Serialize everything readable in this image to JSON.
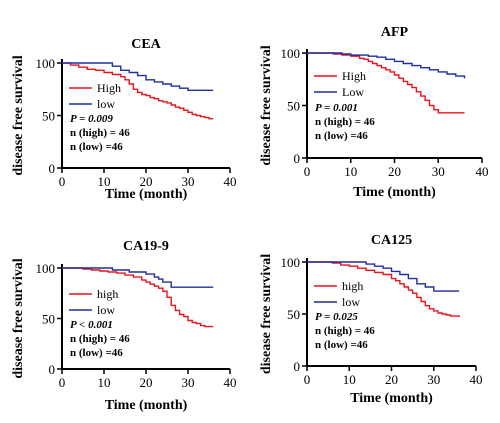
{
  "figure": {
    "colors": {
      "high": "#e8141c",
      "low": "#1f2f9c",
      "axis": "#000000"
    }
  },
  "chart_data": [
    {
      "type": "line",
      "title": "CEA",
      "xlabel": "Time (month)",
      "ylabel": "disease free survival",
      "xlim": [
        0,
        40
      ],
      "ylim": [
        0,
        100
      ],
      "xticks": [
        "0",
        "10",
        "20",
        "30",
        "40"
      ],
      "yticks": [
        "0",
        "50",
        "100"
      ],
      "legend_position": "left",
      "series": [
        {
          "name": "High",
          "color": "#e8141c",
          "x": [
            0,
            1,
            2,
            4,
            6,
            8,
            9,
            10,
            12,
            14,
            15,
            16,
            17,
            18,
            19,
            20,
            21,
            22,
            23,
            24,
            25,
            26,
            27,
            28,
            29,
            30,
            31,
            32,
            33,
            34,
            35,
            36
          ],
          "y": [
            100,
            100,
            98,
            96,
            94,
            93,
            93,
            91,
            89,
            87,
            84,
            80,
            75,
            72,
            70,
            69,
            67,
            66,
            64,
            63,
            62,
            60,
            58,
            57,
            55,
            53,
            51,
            50,
            49,
            48,
            47,
            47
          ]
        },
        {
          "name": "low",
          "color": "#1f2f9c",
          "x": [
            0,
            10,
            12,
            14,
            16,
            18,
            20,
            22,
            24,
            26,
            28,
            30,
            36
          ],
          "y": [
            100,
            100,
            97,
            93,
            91,
            88,
            84,
            82,
            80,
            78,
            76,
            74,
            74
          ]
        }
      ],
      "annotations": [
        "P = 0.009",
        "n (high) = 46",
        "n (low) =46"
      ]
    },
    {
      "type": "line",
      "title": "AFP",
      "xlabel": "Time (month)",
      "ylabel": "disease free survival",
      "xlim": [
        0,
        40
      ],
      "ylim": [
        0,
        100
      ],
      "xticks": [
        "0",
        "10",
        "20",
        "30",
        "40"
      ],
      "yticks": [
        "0",
        "50",
        "100"
      ],
      "legend_position": "left",
      "series": [
        {
          "name": "High",
          "color": "#e8141c",
          "x": [
            0,
            4,
            6,
            8,
            10,
            12,
            13,
            14,
            15,
            16,
            17,
            18,
            19,
            20,
            21,
            22,
            23,
            24,
            25,
            26,
            27,
            28,
            29,
            30,
            32,
            34,
            36
          ],
          "y": [
            100,
            100,
            99,
            98,
            97,
            95,
            94,
            92,
            90,
            88,
            86,
            84,
            82,
            79,
            76,
            73,
            70,
            67,
            63,
            59,
            55,
            50,
            46,
            43,
            43,
            43,
            43
          ]
        },
        {
          "name": "Low",
          "color": "#1f2f9c",
          "x": [
            0,
            6,
            8,
            10,
            12,
            14,
            16,
            18,
            20,
            22,
            24,
            26,
            28,
            30,
            32,
            34,
            36
          ],
          "y": [
            100,
            100,
            99,
            98,
            98,
            97,
            96,
            94,
            92,
            90,
            88,
            86,
            84,
            82,
            80,
            78,
            76
          ]
        }
      ],
      "annotations": [
        "P = 0.001",
        "n (high) = 46",
        "n (low) =46"
      ]
    },
    {
      "type": "line",
      "title": "CA19-9",
      "xlabel": "Time (month)",
      "ylabel": "disease free survival",
      "xlim": [
        0,
        40
      ],
      "ylim": [
        0,
        100
      ],
      "xticks": [
        "0",
        "10",
        "20",
        "30",
        "40"
      ],
      "yticks": [
        "0",
        "50",
        "100"
      ],
      "legend_position": "left",
      "series": [
        {
          "name": "high",
          "color": "#e8141c",
          "x": [
            0,
            3,
            5,
            7,
            9,
            11,
            13,
            15,
            17,
            19,
            20,
            21,
            22,
            23,
            24,
            25,
            26,
            27,
            28,
            29,
            30,
            31,
            32,
            33,
            34,
            36
          ],
          "y": [
            100,
            100,
            99,
            98,
            97,
            96,
            95,
            93,
            91,
            88,
            86,
            84,
            82,
            80,
            77,
            71,
            63,
            58,
            54,
            52,
            48,
            46,
            45,
            43,
            42,
            42
          ]
        },
        {
          "name": "low",
          "color": "#1f2f9c",
          "x": [
            0,
            8,
            12,
            16,
            20,
            22,
            23,
            24,
            26,
            36
          ],
          "y": [
            100,
            100,
            98,
            96,
            94,
            91,
            89,
            86,
            81,
            81
          ]
        }
      ],
      "annotations": [
        "P < 0.001",
        "n (high) = 46",
        "n (low) =46"
      ]
    },
    {
      "type": "line",
      "title": "CA125",
      "xlabel": "Time (month)",
      "ylabel": "disease free survival",
      "xlim": [
        0,
        40
      ],
      "ylim": [
        0,
        100
      ],
      "xticks": [
        "0",
        "10",
        "20",
        "30",
        "40"
      ],
      "yticks": [
        "0",
        "50",
        "100"
      ],
      "legend_position": "left",
      "series": [
        {
          "name": "high",
          "color": "#e8141c",
          "x": [
            0,
            4,
            6,
            8,
            10,
            12,
            14,
            16,
            18,
            20,
            21,
            22,
            23,
            24,
            25,
            26,
            27,
            28,
            29,
            30,
            31,
            32,
            33,
            34,
            36
          ],
          "y": [
            100,
            100,
            99,
            97,
            96,
            94,
            92,
            90,
            88,
            84,
            82,
            79,
            76,
            73,
            70,
            66,
            62,
            58,
            55,
            53,
            51,
            50,
            49,
            48,
            47
          ]
        },
        {
          "name": "low",
          "color": "#1f2f9c",
          "x": [
            0,
            10,
            14,
            16,
            18,
            20,
            22,
            24,
            26,
            28,
            30,
            36
          ],
          "y": [
            100,
            100,
            98,
            96,
            94,
            91,
            88,
            84,
            79,
            76,
            72,
            72
          ]
        }
      ],
      "annotations": [
        "P = 0.025",
        "n (high) = 46",
        "n (low) =46"
      ]
    }
  ]
}
